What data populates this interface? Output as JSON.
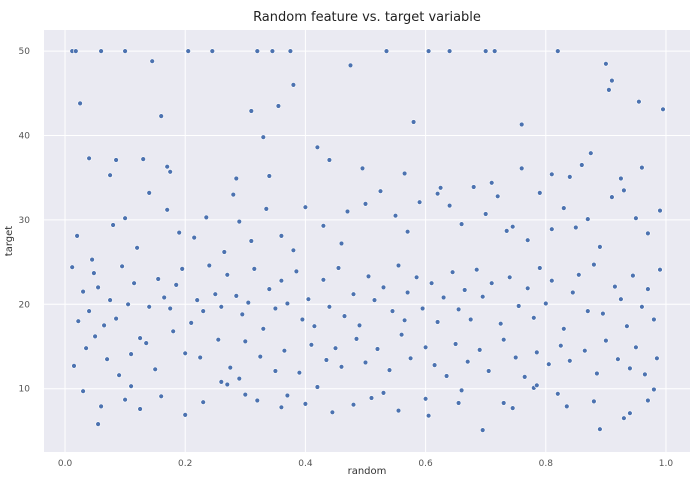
{
  "chart_data": {
    "type": "scatter",
    "title": "Random feature vs. target variable",
    "xlabel": "random",
    "ylabel": "target",
    "xlim": [
      -0.035,
      1.04
    ],
    "ylim": [
      2.5,
      52.5
    ],
    "xticks": [
      "0.0",
      "0.2",
      "0.4",
      "0.6",
      "0.8",
      "1.0"
    ],
    "yticks": [
      "10",
      "20",
      "30",
      "40",
      "50"
    ],
    "grid": true,
    "background": "#eaeaf2",
    "point_color": "#4c72b0",
    "x": [
      0.012,
      0.018,
      0.06,
      0.1,
      0.205,
      0.245,
      0.32,
      0.345,
      0.375,
      0.475,
      0.535,
      0.605,
      0.64,
      0.7,
      0.715,
      0.82,
      0.9,
      0.91,
      0.025,
      0.04,
      0.085,
      0.13,
      0.145,
      0.16,
      0.17,
      0.28,
      0.31,
      0.33,
      0.355,
      0.38,
      0.42,
      0.47,
      0.58,
      0.735,
      0.76,
      0.84,
      0.86,
      0.905,
      0.955,
      0.995,
      0.012,
      0.022,
      0.03,
      0.04,
      0.048,
      0.055,
      0.065,
      0.075,
      0.085,
      0.095,
      0.105,
      0.115,
      0.125,
      0.14,
      0.155,
      0.165,
      0.175,
      0.185,
      0.195,
      0.21,
      0.22,
      0.23,
      0.24,
      0.25,
      0.26,
      0.27,
      0.285,
      0.295,
      0.305,
      0.315,
      0.33,
      0.34,
      0.35,
      0.36,
      0.37,
      0.385,
      0.395,
      0.405,
      0.415,
      0.43,
      0.44,
      0.455,
      0.465,
      0.48,
      0.49,
      0.505,
      0.515,
      0.53,
      0.545,
      0.555,
      0.565,
      0.57,
      0.585,
      0.595,
      0.61,
      0.62,
      0.63,
      0.645,
      0.655,
      0.665,
      0.675,
      0.685,
      0.695,
      0.71,
      0.725,
      0.74,
      0.755,
      0.77,
      0.78,
      0.79,
      0.8,
      0.81,
      0.83,
      0.845,
      0.855,
      0.87,
      0.88,
      0.895,
      0.915,
      0.925,
      0.935,
      0.945,
      0.96,
      0.97,
      0.98,
      0.99,
      0.015,
      0.035,
      0.05,
      0.07,
      0.09,
      0.11,
      0.135,
      0.15,
      0.18,
      0.2,
      0.225,
      0.255,
      0.275,
      0.29,
      0.3,
      0.325,
      0.35,
      0.365,
      0.39,
      0.41,
      0.435,
      0.45,
      0.46,
      0.485,
      0.5,
      0.52,
      0.54,
      0.56,
      0.575,
      0.6,
      0.615,
      0.635,
      0.65,
      0.67,
      0.69,
      0.705,
      0.73,
      0.75,
      0.765,
      0.785,
      0.805,
      0.825,
      0.84,
      0.865,
      0.885,
      0.9,
      0.92,
      0.94,
      0.95,
      0.965,
      0.985,
      0.02,
      0.045,
      0.08,
      0.1,
      0.12,
      0.17,
      0.19,
      0.215,
      0.235,
      0.265,
      0.29,
      0.31,
      0.335,
      0.36,
      0.38,
      0.4,
      0.43,
      0.46,
      0.5,
      0.525,
      0.55,
      0.57,
      0.59,
      0.62,
      0.64,
      0.66,
      0.68,
      0.7,
      0.72,
      0.745,
      0.77,
      0.79,
      0.81,
      0.83,
      0.85,
      0.87,
      0.89,
      0.91,
      0.93,
      0.95,
      0.97,
      0.99,
      0.03,
      0.06,
      0.11,
      0.16,
      0.23,
      0.27,
      0.32,
      0.37,
      0.42,
      0.48,
      0.53,
      0.6,
      0.66,
      0.73,
      0.78,
      0.82,
      0.88,
      0.94,
      0.98,
      0.055,
      0.1,
      0.125,
      0.2,
      0.26,
      0.3,
      0.36,
      0.4,
      0.445,
      0.51,
      0.555,
      0.605,
      0.655,
      0.695,
      0.745,
      0.785,
      0.835,
      0.89,
      0.93,
      0.97,
      0.075,
      0.14,
      0.175,
      0.285,
      0.34,
      0.44,
      0.495,
      0.565,
      0.625,
      0.71,
      0.76,
      0.81,
      0.875,
      0.925,
      0.96
    ],
    "y": [
      50,
      50,
      50,
      50,
      50,
      50,
      50,
      50,
      50,
      48.3,
      50,
      50,
      50,
      50,
      50,
      50,
      48.5,
      46.5,
      43.8,
      37.3,
      37.1,
      37.2,
      48.8,
      42.3,
      36.3,
      33,
      42.9,
      39.8,
      43.5,
      46,
      38.6,
      31,
      41.6,
      28.7,
      41.3,
      35.1,
      36.5,
      45.4,
      44,
      43.1,
      24.4,
      18,
      21.5,
      19.2,
      23.7,
      22,
      17.5,
      20.5,
      18.3,
      24.5,
      20,
      22.5,
      16,
      19.7,
      23,
      20.8,
      19.5,
      22.3,
      24.2,
      17.8,
      20.5,
      19.2,
      24.6,
      21.2,
      19.7,
      23.5,
      21,
      18.8,
      20.2,
      24.2,
      17.1,
      21.8,
      19.5,
      22.8,
      20.1,
      23.9,
      18.2,
      20.6,
      17.4,
      22.9,
      19.7,
      24.3,
      18.6,
      21.2,
      17.5,
      23.3,
      20.5,
      22,
      19.2,
      24.6,
      18.1,
      21.4,
      23.2,
      19.5,
      22.5,
      17.9,
      20.8,
      23.8,
      19.4,
      21.7,
      18.2,
      24.1,
      20.9,
      22.5,
      17.7,
      23.2,
      19.8,
      21.9,
      18.4,
      24.3,
      20.1,
      22.8,
      17.1,
      21.4,
      23.5,
      19.2,
      24.7,
      18.9,
      22.1,
      20.6,
      17.4,
      23.4,
      19.7,
      21.8,
      18.2,
      24.1,
      12.7,
      14.8,
      16.2,
      13.5,
      11.6,
      14.1,
      15.4,
      12.3,
      16.8,
      14.2,
      13.7,
      15.8,
      12.5,
      11.2,
      15.6,
      13.8,
      12.1,
      14.5,
      11.9,
      15.2,
      13.4,
      14.8,
      12.6,
      15.9,
      13.1,
      14.7,
      12.2,
      16.4,
      13.6,
      14.9,
      12.8,
      11.5,
      15.3,
      13.2,
      14.6,
      12.1,
      15.8,
      13.7,
      11.4,
      14.3,
      12.9,
      15.1,
      13.3,
      14.5,
      11.8,
      15.7,
      13.5,
      12.4,
      14.9,
      11.7,
      13.6,
      28.1,
      25.3,
      29.4,
      30.2,
      26.7,
      31.2,
      28.5,
      27.9,
      30.3,
      26.2,
      29.8,
      27.5,
      31.3,
      28.1,
      26.4,
      31.5,
      29.3,
      27.2,
      31.9,
      33.4,
      30.5,
      28.6,
      32.1,
      33.1,
      31.7,
      29.5,
      33.9,
      30.7,
      32.8,
      29.2,
      27.6,
      33.2,
      28.9,
      31.4,
      29.1,
      30.1,
      26.8,
      32.7,
      33.5,
      30.2,
      28.4,
      31.1,
      9.7,
      7.9,
      10.3,
      9.1,
      8.4,
      10.5,
      8.6,
      9.2,
      10.2,
      8.1,
      9.5,
      8.8,
      9.8,
      8.3,
      10.1,
      9.4,
      8.5,
      7.1,
      9.9,
      5.8,
      8.7,
      7.6,
      6.9,
      10.8,
      9.3,
      7.8,
      8.2,
      7.2,
      8.9,
      7.4,
      6.8,
      8.3,
      5.1,
      7.7,
      10.4,
      7.9,
      5.2,
      6.5,
      8.6,
      35.3,
      33.2,
      35.7,
      34.9,
      35.2,
      37.1,
      36.1,
      35.5,
      33.8,
      34.4,
      36.1,
      35.4,
      37.9,
      34.9,
      36.2
    ]
  }
}
